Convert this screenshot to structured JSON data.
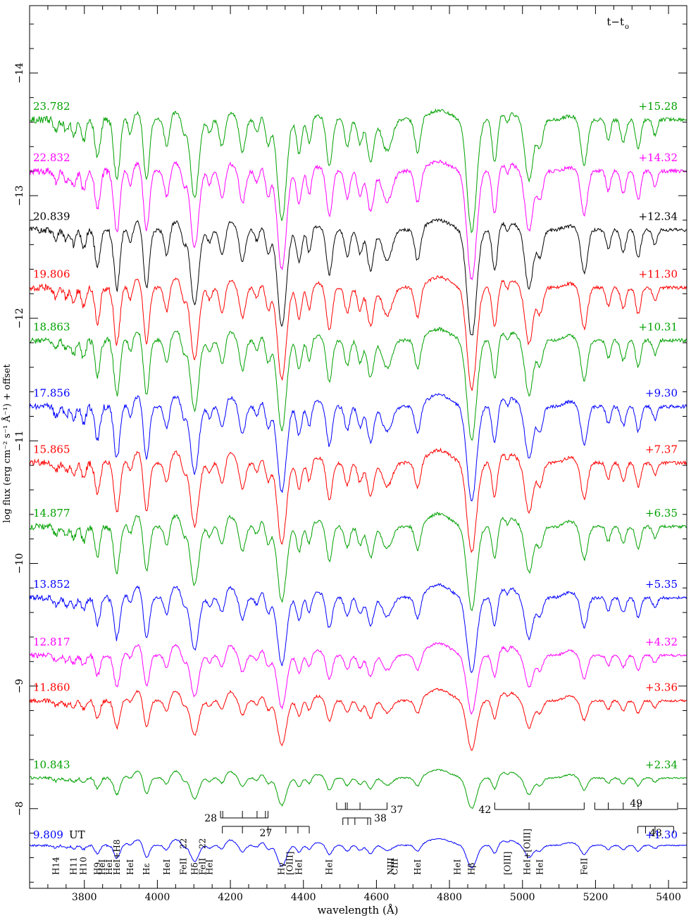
{
  "chart_data": {
    "type": "line",
    "xlabel": "wavelength (Å)",
    "ylabel": "log flux (erg cm⁻² s⁻¹ Å⁻¹) + offset",
    "xlim": [
      3650,
      5450
    ],
    "ylim": [
      -14.55,
      -7.35
    ],
    "y_inverted": true,
    "x_ticks": [
      3800,
      4000,
      4200,
      4400,
      4600,
      4800,
      5000,
      5200,
      5400
    ],
    "y_ticks": [
      -8,
      -9,
      -10,
      -11,
      -12,
      -13,
      -14
    ],
    "header_left_suffix": "UT",
    "header_right": "t−t",
    "header_right_sub": "o",
    "colors": {
      "blue": "#0000ff",
      "green": "#00a000",
      "red": "#ff0000",
      "magenta": "#ff00ff",
      "black": "#000000"
    },
    "series": [
      {
        "name": "9.809",
        "dt": "+1.30",
        "color": "#0000ff",
        "baseline": -7.7,
        "amp": 0.3,
        "evolution": 0.0
      },
      {
        "name": "10.843",
        "dt": "+2.34",
        "color": "#00a000",
        "baseline": -8.25,
        "amp": 0.38,
        "evolution": 0.1
      },
      {
        "name": "11.860",
        "dt": "+3.36",
        "color": "#ff0000",
        "baseline": -8.88,
        "amp": 0.58,
        "evolution": 0.22
      },
      {
        "name": "12.817",
        "dt": "+4.32",
        "color": "#ff00ff",
        "baseline": -9.25,
        "amp": 0.66,
        "evolution": 0.32
      },
      {
        "name": "13.852",
        "dt": "+5.35",
        "color": "#0000ff",
        "baseline": -9.72,
        "amp": 0.8,
        "evolution": 0.45
      },
      {
        "name": "14.877",
        "dt": "+6.35",
        "color": "#00a000",
        "baseline": -10.3,
        "amp": 0.86,
        "evolution": 0.55
      },
      {
        "name": "15.865",
        "dt": "+7.37",
        "color": "#ff0000",
        "baseline": -10.82,
        "amp": 0.9,
        "evolution": 0.62
      },
      {
        "name": "17.856",
        "dt": "+9.30",
        "color": "#0000ff",
        "baseline": -11.28,
        "amp": 0.92,
        "evolution": 0.72
      },
      {
        "name": "18.863",
        "dt": "+10.31",
        "color": "#00a000",
        "baseline": -11.82,
        "amp": 0.94,
        "evolution": 0.8
      },
      {
        "name": "19.806",
        "dt": "+11.30",
        "color": "#ff0000",
        "baseline": -12.25,
        "amp": 0.94,
        "evolution": 0.86
      },
      {
        "name": "20.839",
        "dt": "+12.34",
        "color": "#000000",
        "baseline": -12.72,
        "amp": 0.96,
        "evolution": 0.92
      },
      {
        "name": "22.832",
        "dt": "+14.32",
        "color": "#ff00ff",
        "baseline": -13.2,
        "amp": 0.97,
        "evolution": 0.96
      },
      {
        "name": "23.782",
        "dt": "+15.28",
        "color": "#00a000",
        "baseline": -13.62,
        "amp": 0.98,
        "evolution": 1.0
      }
    ],
    "line_ids": [
      {
        "label": "H14",
        "x": 3722
      },
      {
        "label": "H11",
        "x": 3771
      },
      {
        "label": "H10",
        "x": 3798
      },
      {
        "label": "H9",
        "x": 3836
      },
      {
        "label": "HeI",
        "x": 3849
      },
      {
        "label": "HeI",
        "x": 3868
      },
      {
        "label": "HeI+H8",
        "x": 3889
      },
      {
        "label": "HeI",
        "x": 3926
      },
      {
        "label": "Hε",
        "x": 3970
      },
      {
        "label": "HeI",
        "x": 4026
      },
      {
        "label": "FeII",
        "x": 4072
      },
      {
        "label": "22",
        "x": 4072,
        "stacked": true
      },
      {
        "label": "Hδ",
        "x": 4102
      },
      {
        "label": "FeII",
        "x": 4124
      },
      {
        "label": "22",
        "x": 4124,
        "stacked": true
      },
      {
        "label": "HeI",
        "x": 4143
      },
      {
        "label": "Hγ",
        "x": 4340
      },
      {
        "label": "[OIII]",
        "x": 4363
      },
      {
        "label": "HeI",
        "x": 4388
      },
      {
        "label": "HeI",
        "x": 4471
      },
      {
        "label": "NIII",
        "x": 4640
      },
      {
        "label": "CIII",
        "x": 4650
      },
      {
        "label": "HeI",
        "x": 4713
      },
      {
        "label": "HeI",
        "x": 4822
      },
      {
        "label": "Hβ",
        "x": 4861
      },
      {
        "label": "[OIII]",
        "x": 4959
      },
      {
        "label": "HeI+[OIII]",
        "x": 5013
      },
      {
        "label": "HeI",
        "x": 5048
      },
      {
        "label": "FeII",
        "x": 5169
      }
    ],
    "multiplets": [
      {
        "label": "28",
        "x0": 4173,
        "x1": 4303,
        "ticks": [
          4173,
          4179,
          4233,
          4273,
          4296,
          4303
        ],
        "label_side": "left"
      },
      {
        "label": "27",
        "x0": 4178,
        "x1": 4416,
        "ticks": [
          4178,
          4233,
          4303,
          4352,
          4385,
          4416
        ],
        "label_side": "below"
      },
      {
        "label": "37",
        "x0": 4491,
        "x1": 4629,
        "ticks": [
          4491,
          4515,
          4520,
          4555,
          4629
        ],
        "label_side": "right"
      },
      {
        "label": "38",
        "x0": 4508,
        "x1": 4584,
        "ticks": [
          4508,
          4522,
          4541,
          4576,
          4584
        ],
        "label_side": "right"
      },
      {
        "label": "42",
        "x0": 4924,
        "x1": 5169,
        "ticks": [
          4924,
          5018,
          5169
        ],
        "label_side": "left"
      },
      {
        "label": "49",
        "x0": 5198,
        "x1": 5425,
        "ticks": [
          5198,
          5235,
          5276,
          5317,
          5425
        ],
        "label_side": "above"
      },
      {
        "label": "48",
        "x0": 5316,
        "x1": 5414,
        "ticks": [
          5316,
          5337,
          5363,
          5414
        ],
        "label_side": "below"
      }
    ]
  }
}
